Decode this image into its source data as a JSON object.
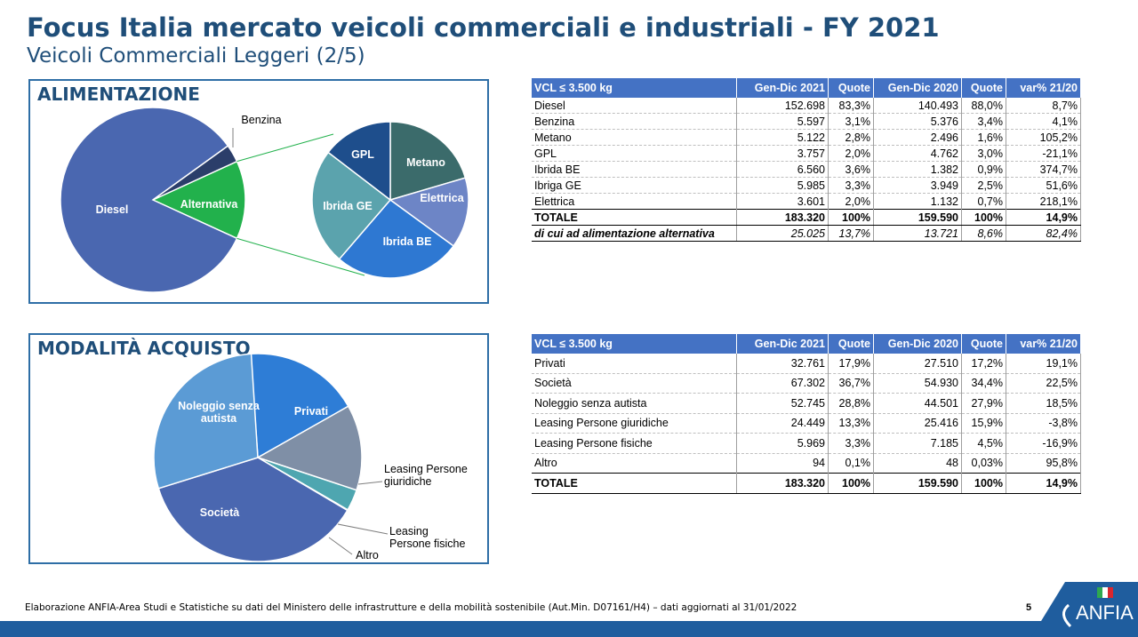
{
  "header": {
    "title": "Focus Italia mercato veicoli commerciali e industriali - FY 2021",
    "subtitle": "Veicoli Commerciali Leggeri (2/5)"
  },
  "colors": {
    "brand": "#1f4e79",
    "table_header": "#4472c4",
    "bar": "#1f5d9e"
  },
  "panel1": {
    "title": "ALIMENTAZIONE"
  },
  "panel2": {
    "title": "MODALITÀ ACQUISTO"
  },
  "chart_data": [
    {
      "type": "pie",
      "subtype": "pie-of-pie",
      "title": "ALIMENTAZIONE",
      "main": {
        "slices": [
          {
            "label": "Diesel",
            "value": 83.3,
            "color": "#4a67b0"
          },
          {
            "label": "Benzina",
            "value": 3.1,
            "color": "#2b3e6a"
          },
          {
            "label": "Alternativa",
            "value": 13.7,
            "color": "#22b14c"
          }
        ]
      },
      "secondary": {
        "slices": [
          {
            "label": "Metano",
            "value": 2.8,
            "color": "#3b6b6b"
          },
          {
            "label": "Elettrica",
            "value": 2.0,
            "color": "#6d85c6"
          },
          {
            "label": "Ibrida BE",
            "value": 3.6,
            "color": "#2e78d2"
          },
          {
            "label": "Ibrida GE",
            "value": 3.3,
            "color": "#5ba3ad"
          },
          {
            "label": "GPL",
            "value": 2.0,
            "color": "#1e4e8c"
          }
        ]
      }
    },
    {
      "type": "pie",
      "title": "MODALITÀ ACQUISTO",
      "slices": [
        {
          "label": "Privati",
          "value": 17.9,
          "color": "#2e7dd6"
        },
        {
          "label": "Leasing Persone giuridiche",
          "value": 13.3,
          "color": "#7f8fa6"
        },
        {
          "label": "Leasing Persone fisiche",
          "value": 3.3,
          "color": "#4ea6b0"
        },
        {
          "label": "Altro",
          "value": 0.1,
          "color": "#2b3e6a"
        },
        {
          "label": "Società",
          "value": 36.7,
          "color": "#4a67b0"
        },
        {
          "label": "Noleggio senza autista",
          "value": 28.8,
          "color": "#5b9bd5"
        }
      ]
    }
  ],
  "table1": {
    "columns": [
      "VCL ≤ 3.500 kg",
      "Gen-Dic 2021",
      "Quote",
      "Gen-Dic 2020",
      "Quote",
      "var% 21/20"
    ],
    "rows": [
      [
        "Diesel",
        "152.698",
        "83,3%",
        "140.493",
        "88,0%",
        "8,7%"
      ],
      [
        "Benzina",
        "5.597",
        "3,1%",
        "5.376",
        "3,4%",
        "4,1%"
      ],
      [
        "Metano",
        "5.122",
        "2,8%",
        "2.496",
        "1,6%",
        "105,2%"
      ],
      [
        "GPL",
        "3.757",
        "2,0%",
        "4.762",
        "3,0%",
        "-21,1%"
      ],
      [
        "Ibrida BE",
        "6.560",
        "3,6%",
        "1.382",
        "0,9%",
        "374,7%"
      ],
      [
        "Ibriga GE",
        "5.985",
        "3,3%",
        "3.949",
        "2,5%",
        "51,6%"
      ],
      [
        "Elettrica",
        "3.601",
        "2,0%",
        "1.132",
        "0,7%",
        "218,1%"
      ]
    ],
    "total": [
      "TOTALE",
      "183.320",
      "100%",
      "159.590",
      "100%",
      "14,9%"
    ],
    "alt": [
      "di cui ad alimentazione alternativa",
      "25.025",
      "13,7%",
      "13.721",
      "8,6%",
      "82,4%"
    ]
  },
  "table2": {
    "columns": [
      "VCL ≤ 3.500 kg",
      "Gen-Dic 2021",
      "Quote",
      "Gen-Dic 2020",
      "Quote",
      "var% 21/20"
    ],
    "rows": [
      [
        "Privati",
        "32.761",
        "17,9%",
        "27.510",
        "17,2%",
        "19,1%"
      ],
      [
        "Società",
        "67.302",
        "36,7%",
        "54.930",
        "34,4%",
        "22,5%"
      ],
      [
        "Noleggio senza autista",
        "52.745",
        "28,8%",
        "44.501",
        "27,9%",
        "18,5%"
      ],
      [
        "Leasing Persone giuridiche",
        "24.449",
        "13,3%",
        "25.416",
        "15,9%",
        "-3,8%"
      ],
      [
        "Leasing Persone fisiche",
        "5.969",
        "3,3%",
        "7.185",
        "4,5%",
        "-16,9%"
      ],
      [
        "Altro",
        "94",
        "0,1%",
        "48",
        "0,03%",
        "95,8%"
      ]
    ],
    "total": [
      "TOTALE",
      "183.320",
      "100%",
      "159.590",
      "100%",
      "14,9%"
    ]
  },
  "footer": {
    "source": "Elaborazione ANFIA-Area Studi e Statistiche su dati del Ministero delle infrastrutture e della mobilità sostenibile (Aut.Min. D07161/H4) – dati aggiornati al 31/01/2022",
    "page": "5",
    "logo_text": "ANFIA"
  }
}
